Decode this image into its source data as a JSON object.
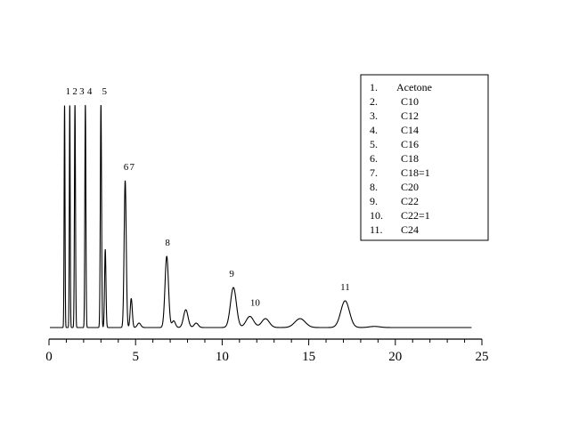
{
  "chart_data": {
    "type": "line",
    "title": "",
    "xlabel": "",
    "ylabel": "",
    "xlim": [
      0,
      25
    ],
    "x_ticks": [
      0,
      5,
      10,
      15,
      20,
      25
    ],
    "x_tick_labels": [
      "0",
      "5",
      "10",
      "15",
      "20",
      "25"
    ],
    "grid": false,
    "legend_position": "top-right",
    "line_color": "#000000",
    "baseline": 0.0,
    "x_range": [
      0.05,
      24.4
    ],
    "peaks": [
      {
        "label": "1",
        "x": 0.9,
        "height": 1.0,
        "width": 0.025
      },
      {
        "label": "2",
        "x": 1.2,
        "height": 1.0,
        "width": 0.025
      },
      {
        "label": "3",
        "x": 1.5,
        "height": 1.0,
        "width": 0.03
      },
      {
        "label": "4",
        "x": 2.1,
        "height": 1.0,
        "width": 0.03
      },
      {
        "label": "5",
        "x": 3.0,
        "height": 1.0,
        "width": 0.035
      },
      {
        "label": "",
        "x": 3.25,
        "height": 0.35,
        "width": 0.04
      },
      {
        "label": "6",
        "x": 4.4,
        "height": 0.66,
        "width": 0.06
      },
      {
        "label": "7",
        "x": 4.75,
        "height": 0.13,
        "width": 0.06
      },
      {
        "label": "",
        "x": 5.2,
        "height": 0.02,
        "width": 0.1
      },
      {
        "label": "8",
        "x": 6.8,
        "height": 0.32,
        "width": 0.1
      },
      {
        "label": "",
        "x": 7.2,
        "height": 0.03,
        "width": 0.1
      },
      {
        "label": "",
        "x": 7.9,
        "height": 0.08,
        "width": 0.13
      },
      {
        "label": "",
        "x": 8.5,
        "height": 0.02,
        "width": 0.12
      },
      {
        "label": "9",
        "x": 10.65,
        "height": 0.18,
        "width": 0.17
      },
      {
        "label": "10",
        "x": 11.6,
        "height": 0.05,
        "width": 0.22
      },
      {
        "label": "",
        "x": 12.5,
        "height": 0.04,
        "width": 0.22
      },
      {
        "label": "",
        "x": 14.5,
        "height": 0.04,
        "width": 0.3
      },
      {
        "label": "11",
        "x": 17.1,
        "height": 0.12,
        "width": 0.25
      },
      {
        "label": "",
        "x": 18.8,
        "height": 0.005,
        "width": 0.3
      }
    ],
    "peak_labels": [
      {
        "text": "1",
        "x": 1.1
      },
      {
        "text": "2",
        "x": 1.5
      },
      {
        "text": "3",
        "x": 1.9
      },
      {
        "text": "4",
        "x": 2.35
      },
      {
        "text": "5",
        "x": 3.2
      },
      {
        "text": "6",
        "x": 4.45
      },
      {
        "text": "7",
        "x": 4.8
      },
      {
        "text": "8",
        "x": 6.85
      },
      {
        "text": "9",
        "x": 10.55
      },
      {
        "text": "10",
        "x": 11.9
      },
      {
        "text": "11",
        "x": 17.1
      }
    ],
    "legend": [
      {
        "num": "1.",
        "name": "Acetone"
      },
      {
        "num": "2.",
        "name": "C10"
      },
      {
        "num": "3.",
        "name": "C12"
      },
      {
        "num": "4.",
        "name": "C14"
      },
      {
        "num": "5.",
        "name": "C16"
      },
      {
        "num": "6.",
        "name": "C18"
      },
      {
        "num": "7.",
        "name": "C18=1"
      },
      {
        "num": "8.",
        "name": "C20"
      },
      {
        "num": "9.",
        "name": "C22"
      },
      {
        "num": "10.",
        "name": "C22=1"
      },
      {
        "num": "11.",
        "name": "C24"
      }
    ]
  }
}
